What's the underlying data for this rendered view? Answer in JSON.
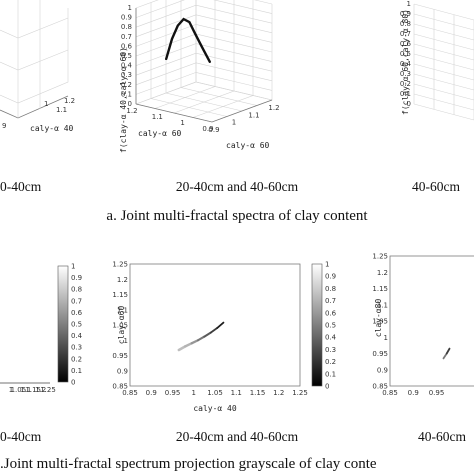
{
  "figure": {
    "title_a": "a. Joint multi-fractal spectra of clay content",
    "title_b": ".Joint multi-fractal spectrum projection grayscale of clay conte"
  },
  "chart_data": [
    {
      "id": "a1",
      "type": "line",
      "caption": "0-40cm",
      "x_ticks": [
        "9",
        "1",
        "1.1",
        "1.2"
      ],
      "xlabel": "caly-α 40",
      "grid": true
    },
    {
      "id": "a2",
      "type": "line",
      "caption": "20-40cm and 40-60cm",
      "xlabel": "caly-α 60",
      "ylabel": "caly-α 60",
      "zlabel": "f(clay-α 40,caly-α 60)",
      "x_ticks": [
        "1.2",
        "1.1",
        "1",
        "0.9"
      ],
      "y_ticks": [
        "0.9",
        "1",
        "1.1",
        "1.2"
      ],
      "z_ticks": [
        "1",
        "0.9",
        "0.8",
        "0.7",
        "0.6",
        "0.5",
        "0.4",
        "0.3",
        "0.2",
        "0.1",
        "0"
      ],
      "zlim": [
        0,
        1
      ],
      "grid": true,
      "series": [
        {
          "x": [
            0.96,
            0.975,
            0.99,
            1.005,
            1.02,
            1.035,
            1.05,
            1.065
          ],
          "y": [
            0.975,
            0.985,
            0.995,
            1.005,
            1.015,
            1.025,
            1.04,
            1.06
          ],
          "z": [
            0.45,
            0.66,
            0.8,
            0.87,
            0.84,
            0.72,
            0.58,
            0.42
          ]
        }
      ]
    },
    {
      "id": "a3",
      "type": "line",
      "caption": "40-60cm",
      "zlabel": "f(clay-α 60,caly-α 80)",
      "z_ticks": [
        "1",
        "0.9",
        "0.8",
        "0.7",
        "0.6",
        "0.5",
        "0.4",
        "0.3",
        "0.2",
        "0.1",
        "0"
      ],
      "zlim": [
        0,
        1
      ],
      "grid": true
    },
    {
      "id": "b1",
      "type": "heatmap",
      "caption": "0-40cm",
      "x_ticks": [
        "1",
        "1.05",
        "1.1",
        "1.15",
        "1.2",
        "1.25"
      ],
      "xlim": [
        0.85,
        1.25
      ],
      "colorbar_ticks": [
        "1",
        "0.9",
        "0.8",
        "0.7",
        "0.6",
        "0.5",
        "0.4",
        "0.3",
        "0.2",
        "0.1",
        "0"
      ],
      "colorbar_range": [
        0,
        1
      ]
    },
    {
      "id": "b2",
      "type": "heatmap",
      "caption": "20-40cm and 40-60cm",
      "xlabel": "caly-α 40",
      "ylabel": "clay-α60",
      "xlim": [
        0.85,
        1.25
      ],
      "ylim": [
        0.85,
        1.25
      ],
      "x_ticks": [
        "0.85",
        "0.9",
        "0.95",
        "1",
        "1.05",
        "1.1",
        "1.15",
        "1.2",
        "1.25"
      ],
      "y_ticks": [
        "1.25",
        "1.2",
        "1.15",
        "1.1",
        "1.05",
        "1",
        "0.95",
        "0.9",
        "0.85"
      ],
      "colorbar_ticks": [
        "1",
        "0.9",
        "0.8",
        "0.7",
        "0.6",
        "0.5",
        "0.4",
        "0.3",
        "0.2",
        "0.1",
        "0"
      ],
      "colorbar_range": [
        0,
        1
      ],
      "points": [
        {
          "x": 0.965,
          "y": 0.968,
          "f": 0.95
        },
        {
          "x": 0.98,
          "y": 0.98,
          "f": 0.9
        },
        {
          "x": 0.995,
          "y": 0.99,
          "f": 0.75
        },
        {
          "x": 1.01,
          "y": 1.0,
          "f": 0.6
        },
        {
          "x": 1.025,
          "y": 1.012,
          "f": 0.45
        },
        {
          "x": 1.04,
          "y": 1.025,
          "f": 0.3
        },
        {
          "x": 1.055,
          "y": 1.04,
          "f": 0.15
        },
        {
          "x": 1.07,
          "y": 1.058,
          "f": 0.05
        }
      ]
    },
    {
      "id": "b3",
      "type": "heatmap",
      "caption": "40-60cm",
      "ylabel": "clay-α80",
      "xlim": [
        0.85,
        1.25
      ],
      "ylim": [
        0.85,
        1.25
      ],
      "x_ticks": [
        "0.85",
        "0.9",
        "0.95"
      ],
      "y_ticks": [
        "1.25",
        "1.2",
        "1.15",
        "1.1",
        "1.05",
        "1",
        "0.95",
        "0.9",
        "0.85"
      ],
      "points": [
        {
          "x": 0.965,
          "y": 0.935,
          "f": 0.6
        },
        {
          "x": 0.972,
          "y": 0.95,
          "f": 0.3
        },
        {
          "x": 0.978,
          "y": 0.965,
          "f": 0.05
        }
      ]
    }
  ]
}
